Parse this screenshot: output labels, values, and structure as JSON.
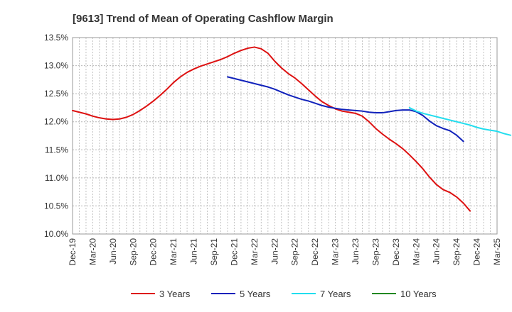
{
  "chart_data": {
    "type": "line",
    "title": "[9613]  Trend of Mean of Operating Cashflow Margin",
    "xlabel": "",
    "ylabel": "",
    "ylim": [
      10.0,
      13.5
    ],
    "yticks": [
      10.0,
      10.5,
      11.0,
      11.5,
      12.0,
      12.5,
      13.0,
      13.5
    ],
    "ytick_labels": [
      "10.0%",
      "10.5%",
      "11.0%",
      "11.5%",
      "12.0%",
      "12.5%",
      "13.0%",
      "13.5%"
    ],
    "x_start": "Dec-19",
    "x_end": "Mar-25",
    "x_tick_labels": [
      "Dec-19",
      "Mar-20",
      "Jun-20",
      "Sep-20",
      "Dec-20",
      "Mar-21",
      "Jun-21",
      "Sep-21",
      "Dec-21",
      "Mar-22",
      "Jun-22",
      "Sep-22",
      "Dec-22",
      "Mar-23",
      "Jun-23",
      "Sep-23",
      "Dec-23",
      "Mar-24",
      "Jun-24",
      "Sep-24",
      "Dec-24",
      "Mar-25"
    ],
    "grid": true,
    "legend_position": "bottom",
    "series": [
      {
        "name": "3 Years",
        "color": "#dd1111",
        "start_month_index": 0,
        "values": [
          12.2,
          12.17,
          12.14,
          12.1,
          12.07,
          12.05,
          12.04,
          12.05,
          12.08,
          12.13,
          12.2,
          12.28,
          12.37,
          12.47,
          12.58,
          12.7,
          12.8,
          12.88,
          12.94,
          12.99,
          13.03,
          13.07,
          13.11,
          13.16,
          13.22,
          13.27,
          13.31,
          13.33,
          13.3,
          13.22,
          13.08,
          12.96,
          12.86,
          12.78,
          12.68,
          12.57,
          12.46,
          12.36,
          12.29,
          12.23,
          12.19,
          12.17,
          12.15,
          12.1,
          12.0,
          11.88,
          11.78,
          11.69,
          11.61,
          11.52,
          11.41,
          11.29,
          11.16,
          11.01,
          10.88,
          10.79,
          10.74,
          10.66,
          10.55,
          10.41
        ]
      },
      {
        "name": "5 Years",
        "color": "#1122bb",
        "start_month_index": 23,
        "values": [
          12.8,
          12.77,
          12.74,
          12.71,
          12.68,
          12.65,
          12.62,
          12.58,
          12.53,
          12.48,
          12.44,
          12.4,
          12.37,
          12.33,
          12.29,
          12.26,
          12.24,
          12.22,
          12.21,
          12.2,
          12.19,
          12.17,
          12.16,
          12.16,
          12.18,
          12.2,
          12.21,
          12.21,
          12.18,
          12.11,
          12.01,
          11.93,
          11.88,
          11.84,
          11.76,
          11.65
        ]
      },
      {
        "name": "7 Years",
        "color": "#22ddee",
        "start_month_index": 50,
        "values": [
          12.25,
          12.19,
          12.15,
          12.12,
          12.09,
          12.06,
          12.03,
          12.0,
          11.97,
          11.94,
          11.9,
          11.87,
          11.85,
          11.83,
          11.79,
          11.76
        ]
      },
      {
        "name": "10 Years",
        "color": "#228822",
        "start_month_index": null,
        "values": []
      }
    ]
  }
}
